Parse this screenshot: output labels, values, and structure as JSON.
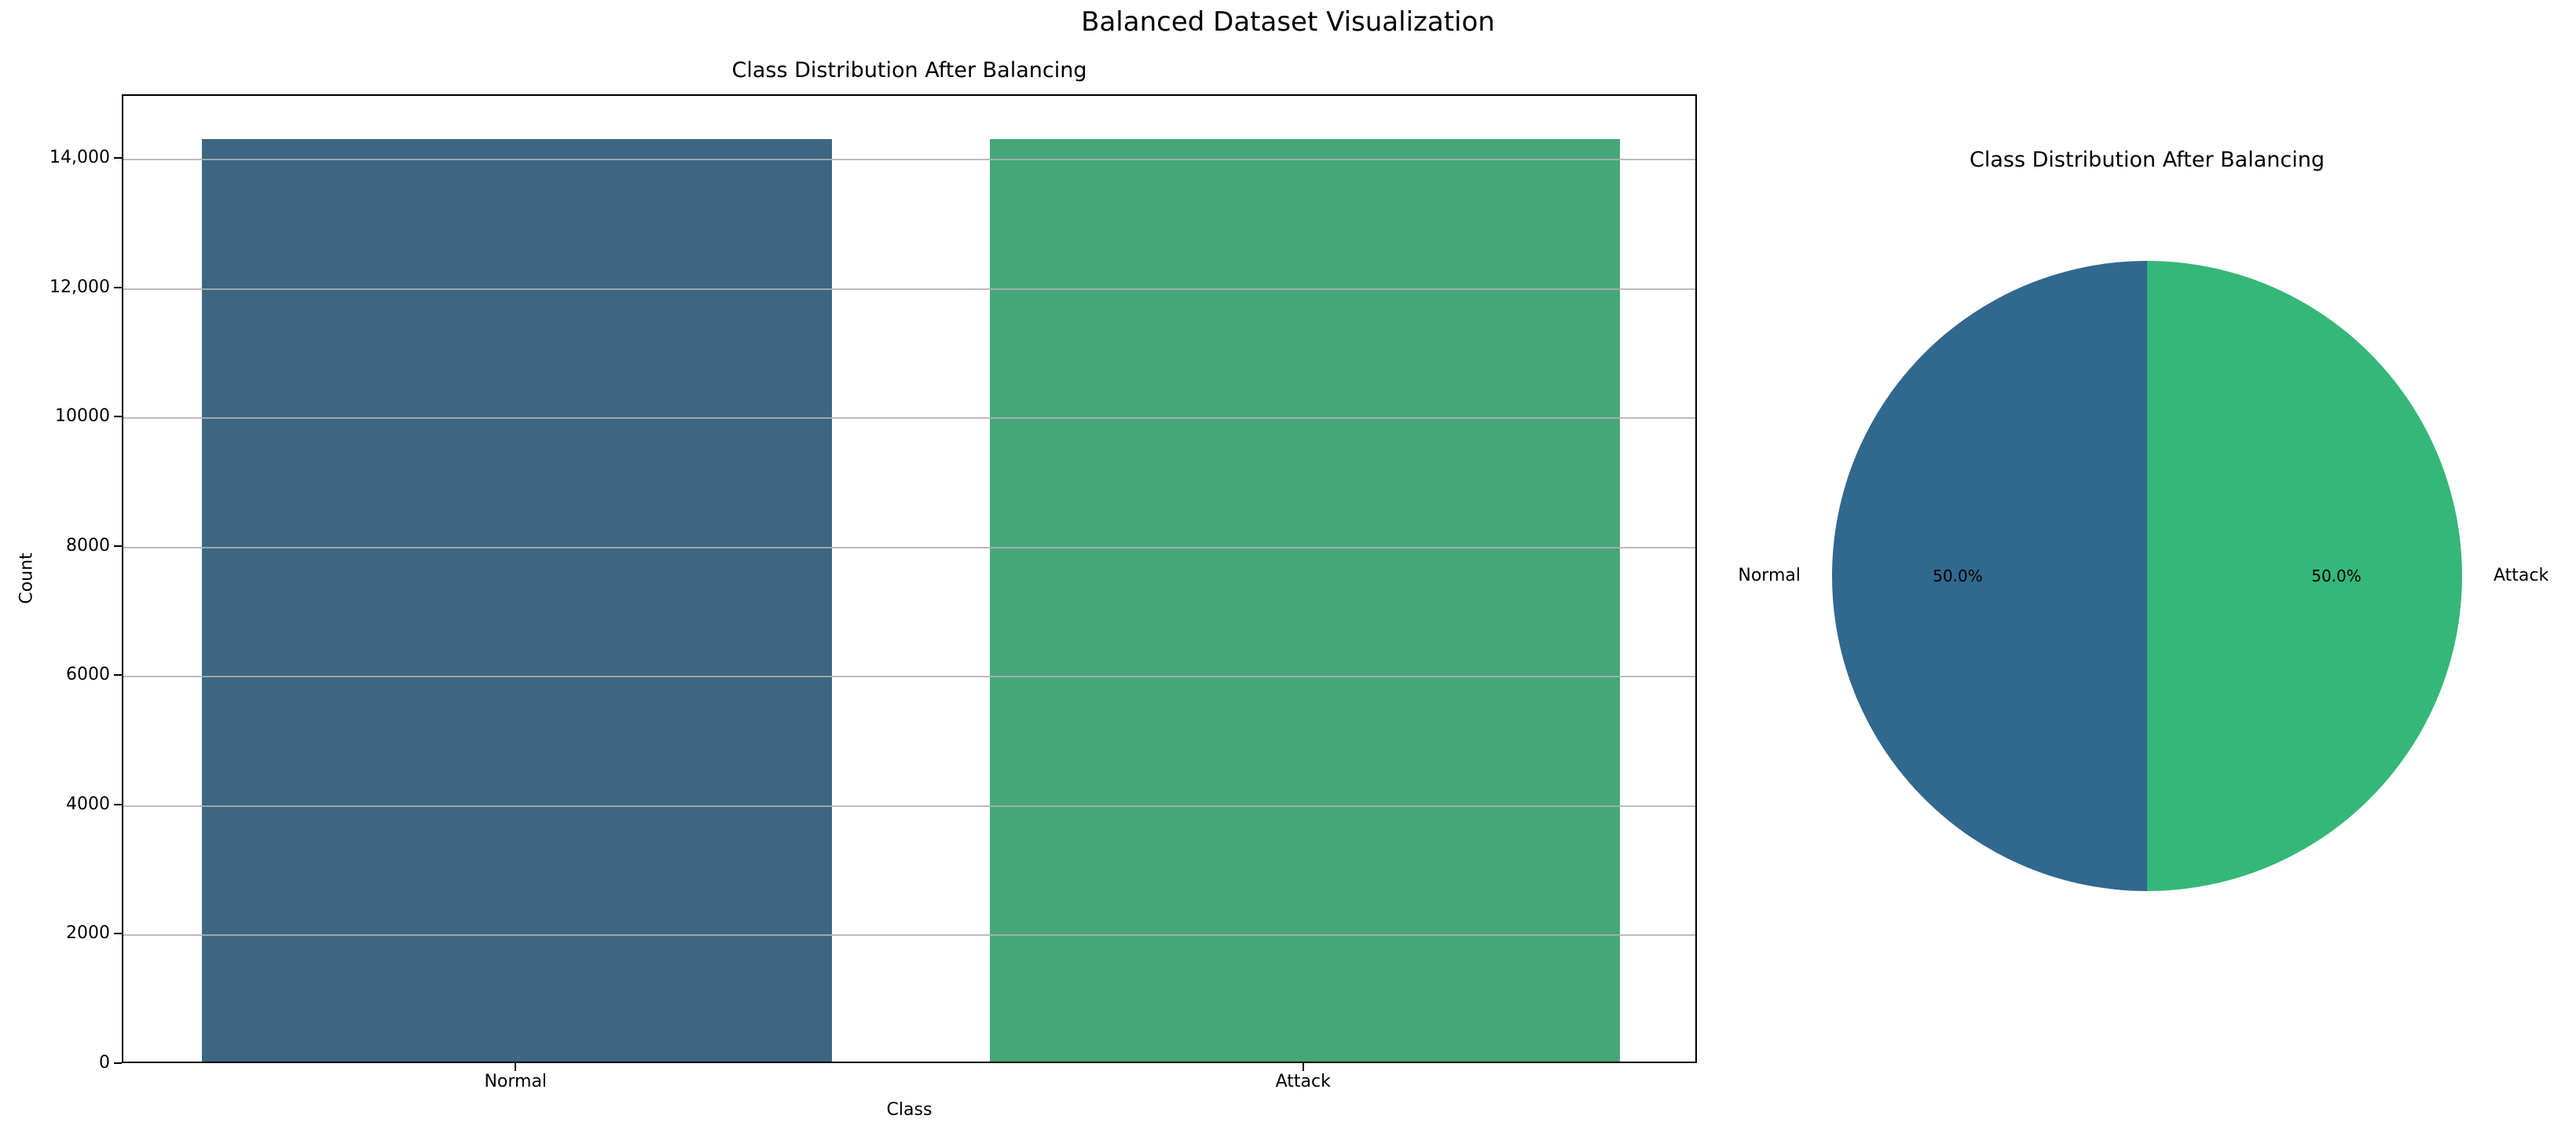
{
  "figure": {
    "suptitle": "Balanced Dataset Visualization",
    "background": "#ffffff"
  },
  "colors": {
    "grid": "#b0b0b0",
    "spine": "#000000",
    "text": "#000000"
  },
  "chart_data": [
    {
      "type": "bar",
      "title": "Class Distribution After Balancing",
      "xlabel": "Class",
      "ylabel": "Count",
      "categories": [
        "Normal",
        "Attack"
      ],
      "values": [
        14270,
        14270
      ],
      "bar_colors": [
        "#3d6682",
        "#45a778"
      ],
      "ylim": [
        0,
        14990
      ],
      "yticks": [
        0,
        2000,
        4000,
        6000,
        8000,
        10000,
        12000,
        14000
      ],
      "ytick_labels": [
        "0",
        "2000",
        "4000",
        "6000",
        "8000",
        "10000",
        "12,000",
        "14,000"
      ],
      "grid": "horizontal",
      "grid_on_top": true,
      "bar_width_fraction": 0.8
    },
    {
      "type": "pie",
      "title": "Class Distribution After Balancing",
      "labels": [
        "Normal",
        "Attack"
      ],
      "values": [
        50.0,
        50.0
      ],
      "pct_labels": [
        "50.0%",
        "50.0%"
      ],
      "colors": [
        "#31688e",
        "#35b779"
      ],
      "start_angle": 90,
      "label_distance": 1.1,
      "pct_distance": 0.6
    }
  ]
}
